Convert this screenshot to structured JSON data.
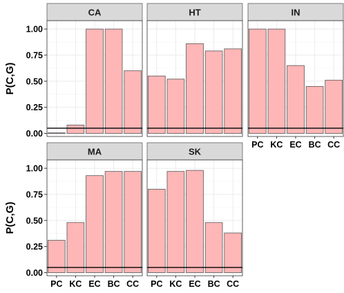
{
  "chart_data": {
    "type": "bar",
    "ylabel": "P(C,G)",
    "ylim": [
      -0.03,
      1.08
    ],
    "yticks": [
      "0.00",
      "0.25",
      "0.50",
      "0.75",
      "1.00"
    ],
    "ytick_values": [
      0,
      0.25,
      0.5,
      0.75,
      1.0
    ],
    "categories": [
      "PC",
      "KC",
      "EC",
      "BC",
      "CC"
    ],
    "reference_line": 0.05,
    "grid": true,
    "colors": {
      "bar_fill": "#ffb6b6",
      "bar_stroke": "#555555",
      "strip": "#d9d9d9",
      "panel_border": "#333333",
      "grid": "#ebebeb",
      "ref_line": "#000000"
    },
    "panels": [
      {
        "name": "CA",
        "values": [
          0.005,
          0.08,
          1.0,
          1.0,
          0.6
        ]
      },
      {
        "name": "HT",
        "values": [
          0.55,
          0.52,
          0.86,
          0.79,
          0.81
        ]
      },
      {
        "name": "IN",
        "values": [
          1.0,
          1.0,
          0.65,
          0.45,
          0.51
        ]
      },
      {
        "name": "MA",
        "values": [
          0.31,
          0.48,
          0.93,
          0.97,
          0.97
        ]
      },
      {
        "name": "SK",
        "values": [
          0.8,
          0.97,
          0.98,
          0.48,
          0.38
        ]
      }
    ]
  }
}
